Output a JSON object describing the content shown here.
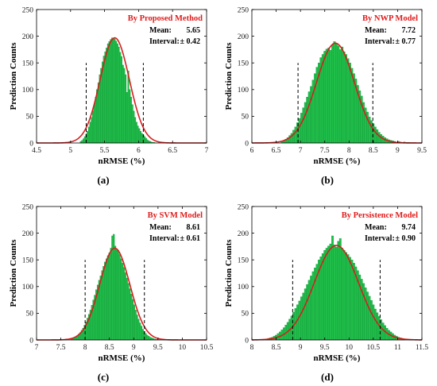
{
  "colors": {
    "bar": "#1fbf4a",
    "bar_edge": "#0f8a31",
    "curve": "#d42020",
    "title": "#e01b1b",
    "axis": "#000000",
    "interval_line": "#000000"
  },
  "chart_data": [
    {
      "type": "bar",
      "caption": "(a)",
      "title": "By Proposed Method",
      "mean_label": "Mean:",
      "mean_value": "5.65",
      "interval_label": "Interval:",
      "interval_value": "± 0.42",
      "xlabel": "nRMSE (%)",
      "ylabel": "Prediction Counts",
      "xlim": [
        4.5,
        7
      ],
      "ylim": [
        0,
        250
      ],
      "xticks": [
        4.5,
        5,
        5.5,
        6,
        6.5,
        7
      ],
      "xtick_labels": [
        "4.5",
        "5",
        "5.5",
        "6",
        "6.5",
        "7"
      ],
      "yticks": [
        0,
        50,
        100,
        150,
        200,
        250
      ],
      "ytick_labels": [
        "0",
        "50",
        "100",
        "150",
        "200",
        "250"
      ],
      "mean": 5.65,
      "sd": 0.214,
      "bin_width": 0.02,
      "bin_centers": [
        5.15,
        5.17,
        5.19,
        5.21,
        5.23,
        5.25,
        5.27,
        5.29,
        5.31,
        5.33,
        5.35,
        5.37,
        5.39,
        5.41,
        5.43,
        5.45,
        5.47,
        5.49,
        5.51,
        5.53,
        5.55,
        5.57,
        5.59,
        5.61,
        5.63,
        5.65,
        5.67,
        5.69,
        5.71,
        5.73,
        5.75,
        5.77,
        5.79,
        5.81,
        5.83,
        5.85,
        5.87,
        5.89,
        5.91,
        5.93,
        5.95,
        5.97,
        5.99,
        6.01,
        6.03,
        6.05,
        6.07,
        6.09,
        6.11,
        6.13,
        6.15,
        6.17,
        6.19,
        6.21,
        6.23
      ],
      "values": [
        3,
        5,
        8,
        12,
        17,
        22,
        30,
        39,
        48,
        60,
        72,
        86,
        100,
        113,
        128,
        140,
        152,
        163,
        171,
        178,
        186,
        190,
        194,
        197,
        197,
        195,
        191,
        186,
        180,
        170,
        162,
        146,
        140,
        128,
        95,
        135,
        100,
        86,
        72,
        60,
        48,
        39,
        32,
        27,
        22,
        18,
        15,
        12,
        9,
        6,
        4,
        3,
        2,
        1,
        1
      ],
      "fit_curve": "normal",
      "fit_peak": 197,
      "interval_lines": [
        5.23,
        6.07
      ],
      "interval_line_height": 150
    },
    {
      "type": "bar",
      "caption": "(b)",
      "title": "By NWP Model",
      "mean_label": "Mean:",
      "mean_value": "7.72",
      "interval_label": "Interval:",
      "interval_value": "± 0.77",
      "xlabel": "nRMSE (%)",
      "ylabel": "Prediction Counts",
      "xlim": [
        6,
        9.5
      ],
      "ylim": [
        0,
        250
      ],
      "xticks": [
        6,
        6.5,
        7,
        7.5,
        8,
        8.5,
        9,
        9.5
      ],
      "xtick_labels": [
        "6",
        "6.5",
        "7",
        "7.5",
        "8",
        "8.5",
        "9",
        "9.5"
      ],
      "yticks": [
        0,
        50,
        100,
        150,
        200,
        250
      ],
      "ytick_labels": [
        "0",
        "50",
        "100",
        "150",
        "200",
        "250"
      ],
      "mean": 7.72,
      "sd": 0.39,
      "bin_width": 0.04,
      "bin_centers": [
        6.62,
        6.66,
        6.7,
        6.74,
        6.78,
        6.82,
        6.86,
        6.9,
        6.94,
        6.98,
        7.02,
        7.06,
        7.1,
        7.14,
        7.18,
        7.22,
        7.26,
        7.3,
        7.34,
        7.38,
        7.42,
        7.46,
        7.5,
        7.54,
        7.58,
        7.62,
        7.66,
        7.7,
        7.74,
        7.78,
        7.82,
        7.86,
        7.9,
        7.94,
        7.98,
        8.02,
        8.06,
        8.1,
        8.14,
        8.18,
        8.22,
        8.26,
        8.3,
        8.34,
        8.38,
        8.42,
        8.46,
        8.5,
        8.54,
        8.58,
        8.62,
        8.66,
        8.7,
        8.74,
        8.78,
        8.82,
        8.86,
        8.9,
        8.94,
        8.98,
        9.02,
        9.06,
        9.1,
        9.14,
        9.18,
        9.22
      ],
      "values": [
        3,
        5,
        7,
        10,
        14,
        18,
        24,
        30,
        38,
        46,
        56,
        66,
        76,
        86,
        96,
        106,
        118,
        130,
        142,
        150,
        160,
        166,
        172,
        176,
        178,
        174,
        184,
        190,
        186,
        182,
        175,
        180,
        171,
        166,
        158,
        150,
        140,
        130,
        120,
        108,
        98,
        88,
        76,
        66,
        58,
        49,
        42,
        36,
        30,
        25,
        20,
        16,
        13,
        10,
        8,
        6,
        5,
        4,
        3,
        2,
        3,
        2,
        1,
        2,
        1,
        1
      ],
      "fit_curve": "normal",
      "fit_peak": 187,
      "interval_lines": [
        6.95,
        8.49
      ],
      "interval_line_height": 150
    },
    {
      "type": "bar",
      "caption": "(c)",
      "title": "By SVM Model",
      "mean_label": "Mean:",
      "mean_value": "8.61",
      "interval_label": "Interval:",
      "interval_value": "± 0.61",
      "xlabel": "nRMSE (%)",
      "ylabel": "Prediction Counts",
      "xlim": [
        7,
        10.5
      ],
      "ylim": [
        0,
        250
      ],
      "xticks": [
        7,
        7.5,
        8,
        8.5,
        9,
        9.5,
        10,
        10.5
      ],
      "xtick_labels": [
        "7",
        "7.5",
        "8",
        "8.5",
        "9",
        "9.5",
        "10",
        "10.5"
      ],
      "yticks": [
        0,
        50,
        100,
        150,
        200,
        250
      ],
      "ytick_labels": [
        "0",
        "50",
        "100",
        "150",
        "200",
        "250"
      ],
      "mean": 8.61,
      "sd": 0.31,
      "bin_width": 0.03,
      "bin_centers": [
        7.72,
        7.75,
        7.78,
        7.81,
        7.84,
        7.87,
        7.9,
        7.93,
        7.96,
        7.99,
        8.02,
        8.05,
        8.08,
        8.11,
        8.14,
        8.17,
        8.2,
        8.23,
        8.26,
        8.29,
        8.32,
        8.35,
        8.38,
        8.41,
        8.44,
        8.47,
        8.5,
        8.53,
        8.56,
        8.59,
        8.62,
        8.65,
        8.68,
        8.71,
        8.74,
        8.77,
        8.8,
        8.83,
        8.86,
        8.89,
        8.92,
        8.95,
        8.98,
        9.01,
        9.04,
        9.07,
        9.1,
        9.13,
        9.16,
        9.19,
        9.22,
        9.25,
        9.28,
        9.31,
        9.34,
        9.37,
        9.4,
        9.43,
        9.46,
        9.49
      ],
      "values": [
        2,
        3,
        4,
        6,
        8,
        11,
        14,
        18,
        22,
        28,
        34,
        41,
        48,
        56,
        65,
        75,
        84,
        94,
        103,
        112,
        120,
        130,
        138,
        146,
        152,
        158,
        163,
        172,
        195,
        198,
        176,
        170,
        168,
        160,
        152,
        144,
        136,
        126,
        116,
        106,
        96,
        86,
        76,
        66,
        56,
        47,
        39,
        32,
        26,
        20,
        16,
        12,
        9,
        7,
        5,
        4,
        3,
        2,
        1,
        1
      ],
      "fit_curve": "normal",
      "fit_peak": 172,
      "interval_lines": [
        8.0,
        9.22
      ],
      "interval_line_height": 150
    },
    {
      "type": "bar",
      "caption": "(d)",
      "title": "By Persistence Model",
      "mean_label": "Mean:",
      "mean_value": "9.74",
      "interval_label": "Interval:",
      "interval_value": "± 0.90",
      "xlabel": "nRMSE (%)",
      "ylabel": "Prediction Counts",
      "xlim": [
        8,
        11.5
      ],
      "ylim": [
        0,
        250
      ],
      "xticks": [
        8,
        8.5,
        9,
        9.5,
        10,
        10.5,
        11,
        11.5
      ],
      "xtick_labels": [
        "8",
        "8.5",
        "9",
        "9.5",
        "10",
        "10.5",
        "11",
        "11.5"
      ],
      "yticks": [
        0,
        50,
        100,
        150,
        200,
        250
      ],
      "ytick_labels": [
        "0",
        "50",
        "100",
        "150",
        "200",
        "250"
      ],
      "mean": 9.74,
      "sd": 0.455,
      "bin_width": 0.04,
      "bin_centers": [
        8.3,
        8.34,
        8.38,
        8.42,
        8.46,
        8.5,
        8.54,
        8.58,
        8.62,
        8.66,
        8.7,
        8.74,
        8.78,
        8.82,
        8.86,
        8.9,
        8.94,
        8.98,
        9.02,
        9.06,
        9.1,
        9.14,
        9.18,
        9.22,
        9.26,
        9.3,
        9.34,
        9.38,
        9.42,
        9.46,
        9.5,
        9.54,
        9.58,
        9.62,
        9.66,
        9.7,
        9.74,
        9.78,
        9.82,
        9.86,
        9.9,
        9.94,
        9.98,
        10.02,
        10.06,
        10.1,
        10.14,
        10.18,
        10.22,
        10.26,
        10.3,
        10.34,
        10.38,
        10.42,
        10.46,
        10.5,
        10.54,
        10.58,
        10.62,
        10.66,
        10.7,
        10.74,
        10.78,
        10.82,
        10.86,
        10.9,
        10.94,
        10.98,
        11.02,
        11.06,
        11.1,
        11.14
      ],
      "values": [
        2,
        3,
        4,
        5,
        7,
        9,
        12,
        15,
        19,
        23,
        28,
        33,
        39,
        45,
        52,
        59,
        66,
        73,
        81,
        88,
        96,
        104,
        112,
        120,
        128,
        135,
        142,
        150,
        156,
        162,
        168,
        172,
        176,
        180,
        195,
        178,
        174,
        185,
        190,
        172,
        168,
        164,
        160,
        155,
        150,
        144,
        137,
        130,
        122,
        114,
        106,
        98,
        90,
        82,
        74,
        66,
        58,
        51,
        44,
        38,
        32,
        27,
        22,
        18,
        15,
        12,
        9,
        7,
        5,
        4,
        3,
        2
      ],
      "fit_curve": "normal",
      "fit_peak": 177,
      "interval_lines": [
        8.84,
        10.64
      ],
      "interval_line_height": 150
    }
  ]
}
